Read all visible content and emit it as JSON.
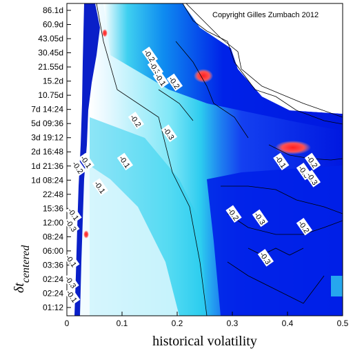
{
  "chart_data": {
    "type": "heatmap",
    "title": "",
    "copyright": "Copyright Gilles Zumbach 2012",
    "xlabel": "historical volatility",
    "ylabel_main": "δt",
    "ylabel_sub": "centered",
    "xlim": [
      0,
      0.5
    ],
    "x_ticks": [
      "0",
      "0.1",
      "0.2",
      "0.3",
      "0.4",
      "0.5"
    ],
    "y_ticks": [
      "01:12",
      "02:24",
      "02:24",
      "03:36",
      "06:00",
      "08:24",
      "12:00",
      "15:36",
      "22:48",
      "1d 08:24",
      "1d 21:36",
      "2d 16:48",
      "3d 19:12",
      "5d 09:36",
      "7d 14:24",
      "10.75d",
      "15.2d",
      "21.55d",
      "30.45d",
      "43.05d",
      "60.9d",
      "86.1d"
    ],
    "colors": {
      "high": "#e8f8ff",
      "mid_low": "#22d8ee",
      "low": "#0022dd",
      "positive": "#ff2020",
      "contour": "#000000"
    },
    "contour_labels": [
      {
        "text": "-0.2",
        "x": 0.15,
        "y": 17.8
      },
      {
        "text": "-0.3",
        "x": 0.16,
        "y": 16.9
      },
      {
        "text": "-0.1",
        "x": 0.17,
        "y": 16.1
      },
      {
        "text": "-0.2",
        "x": 0.195,
        "y": 15.9
      },
      {
        "text": "-0.2",
        "x": 0.125,
        "y": 13.2
      },
      {
        "text": "-0.3",
        "x": 0.185,
        "y": 12.3
      },
      {
        "text": "-0.1",
        "x": 0.105,
        "y": 10.3
      },
      {
        "text": "-0.2",
        "x": 0.302,
        "y": 6.6
      },
      {
        "text": "-0.3",
        "x": 0.35,
        "y": 6.3
      },
      {
        "text": "-0.2",
        "x": 0.43,
        "y": 5.7
      },
      {
        "text": "-0.3",
        "x": 0.36,
        "y": 3.5
      },
      {
        "text": "-0.1",
        "x": 0.388,
        "y": 10.3
      },
      {
        "text": "-0.2",
        "x": 0.445,
        "y": 10.3
      },
      {
        "text": "-0.3",
        "x": 0.43,
        "y": 9.6
      },
      {
        "text": "-0.3",
        "x": 0.445,
        "y": 9.1
      },
      {
        "text": "-0.1",
        "x": 0.035,
        "y": 10.3
      },
      {
        "text": "-0.2",
        "x": 0.02,
        "y": 9.9
      },
      {
        "text": "-0.1",
        "x": 0.06,
        "y": 8.5
      },
      {
        "text": "-0.1",
        "x": 0.012,
        "y": 6.6
      },
      {
        "text": "-0.3",
        "x": 0.008,
        "y": 5.8
      },
      {
        "text": "-0.1",
        "x": 0.008,
        "y": 3.3
      },
      {
        "text": "-0.3",
        "x": 0.007,
        "y": 1.8
      },
      {
        "text": "-0.1",
        "x": 0.009,
        "y": 0.8
      }
    ]
  }
}
